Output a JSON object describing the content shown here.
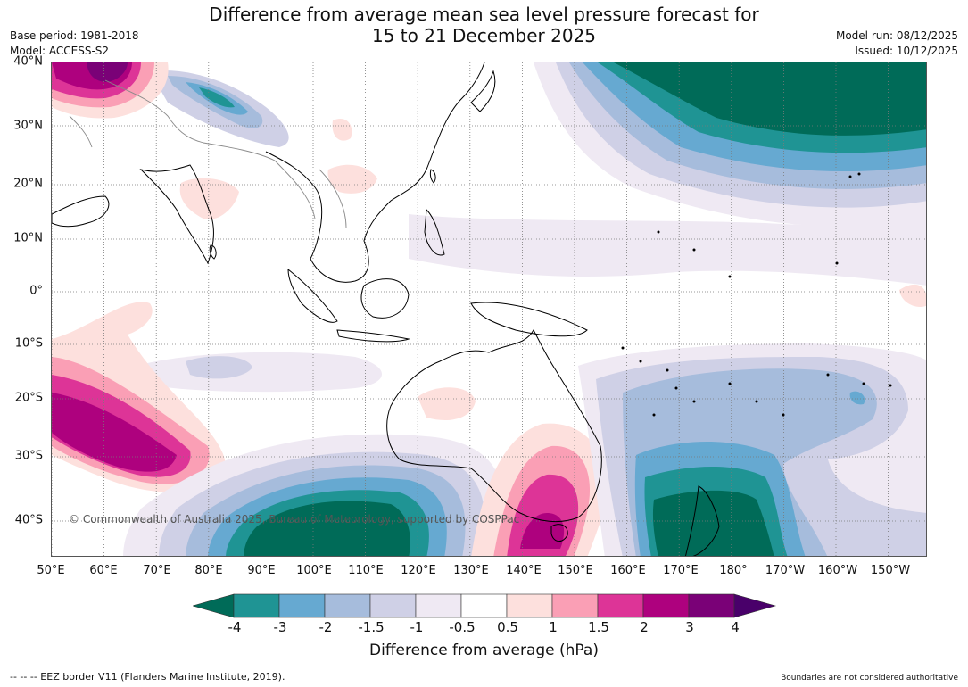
{
  "header": {
    "title_line1": "Difference from average mean sea level pressure forecast for",
    "title_line2": "15 to 21 December 2025",
    "base_period": "Base period: 1981-2018",
    "model": "Model: ACCESS-S2",
    "model_run": "Model run: 08/12/2025",
    "issued": "Issued: 10/12/2025"
  },
  "map": {
    "lat_labels": [
      "40°N",
      "30°N",
      "20°N",
      "10°N",
      "0°",
      "10°S",
      "20°S",
      "30°S",
      "40°S"
    ],
    "lon_labels": [
      "50°E",
      "60°E",
      "70°E",
      "80°E",
      "90°E",
      "100°E",
      "110°E",
      "120°E",
      "130°E",
      "140°E",
      "150°E",
      "160°E",
      "170°E",
      "180°",
      "170°W",
      "160°W",
      "150°W"
    ],
    "copyright": "© Commonwealth of Australia 2025, Bureau of Meteorology, supported by COSPPac"
  },
  "colorbar": {
    "ticks": [
      "-4",
      "-3",
      "-2",
      "-1.5",
      "-1",
      "-0.5",
      "0.5",
      "1",
      "1.5",
      "2",
      "3",
      "4"
    ],
    "colors": [
      "#006b58",
      "#1f9494",
      "#66a9d1",
      "#a6bcdc",
      "#cfd0e6",
      "#efe9f3",
      "#ffffff",
      "#fde0dd",
      "#fa9fb5",
      "#dd3497",
      "#ae017e",
      "#7a0177",
      "#49006a"
    ],
    "label": "Difference from average (hPa)"
  },
  "footer": {
    "eez": "--  --  -- EEZ border V11 (Flanders Marine Institute, 2019).",
    "disclaimer": "Boundaries are not considered authoritative"
  }
}
